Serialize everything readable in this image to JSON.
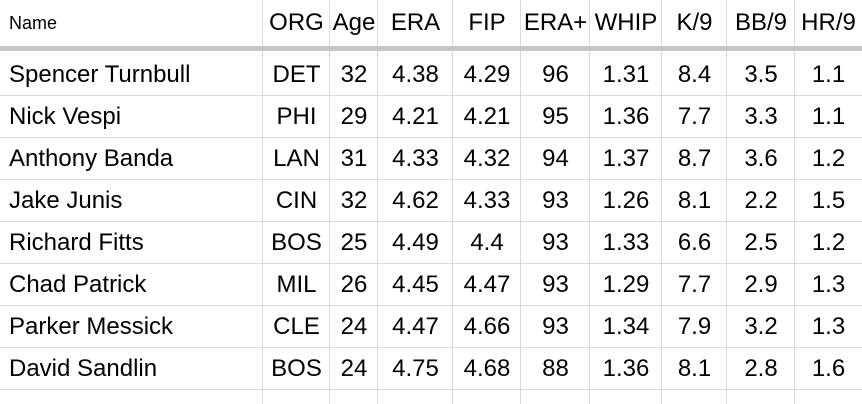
{
  "table": {
    "columns": [
      "Name",
      "ORG",
      "Age",
      "ERA",
      "FIP",
      "ERA+",
      "WHIP",
      "K/9",
      "BB/9",
      "HR/9"
    ],
    "rows": [
      [
        "Spencer Turnbull",
        "DET",
        "32",
        "4.38",
        "4.29",
        "96",
        "1.31",
        "8.4",
        "3.5",
        "1.1"
      ],
      [
        "Nick Vespi",
        "PHI",
        "29",
        "4.21",
        "4.21",
        "95",
        "1.36",
        "7.7",
        "3.3",
        "1.1"
      ],
      [
        "Anthony Banda",
        "LAN",
        "31",
        "4.33",
        "4.32",
        "94",
        "1.37",
        "8.7",
        "3.6",
        "1.2"
      ],
      [
        "Jake Junis",
        "CIN",
        "32",
        "4.62",
        "4.33",
        "93",
        "1.26",
        "8.1",
        "2.2",
        "1.5"
      ],
      [
        "Richard Fitts",
        "BOS",
        "25",
        "4.49",
        "4.4",
        "93",
        "1.33",
        "6.6",
        "2.5",
        "1.2"
      ],
      [
        "Chad Patrick",
        "MIL",
        "26",
        "4.45",
        "4.47",
        "93",
        "1.29",
        "7.7",
        "2.9",
        "1.3"
      ],
      [
        "Parker Messick",
        "CLE",
        "24",
        "4.47",
        "4.66",
        "93",
        "1.34",
        "7.9",
        "3.2",
        "1.3"
      ],
      [
        "David Sandlin",
        "BOS",
        "24",
        "4.75",
        "4.68",
        "88",
        "1.36",
        "8.1",
        "2.8",
        "1.6"
      ]
    ]
  },
  "colors": {
    "gridline": "#d9d9d9",
    "freeze_bar": "#c6c6c6",
    "text": "#000000"
  }
}
